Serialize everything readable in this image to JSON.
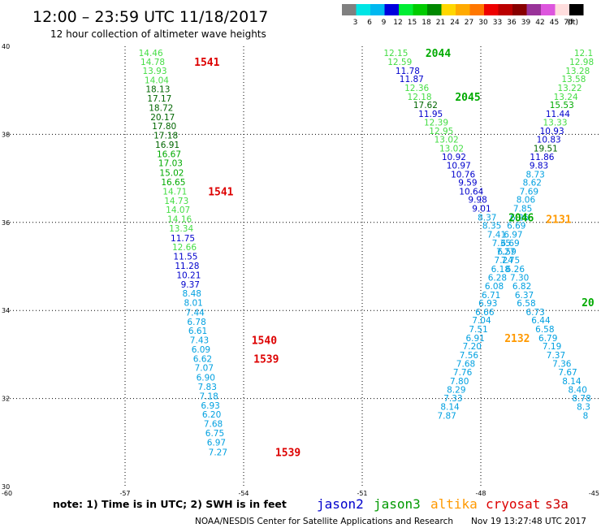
{
  "header": {
    "title": "12:00 – 23:59 UTC 11/18/2017",
    "subtitle": "12 hour collection of altimeter wave heights"
  },
  "legend": {
    "unit": "(ft)",
    "bins": [
      {
        "label": "3",
        "color": "#808080"
      },
      {
        "label": "6",
        "color": "#00e5e5"
      },
      {
        "label": "9",
        "color": "#00b8f0"
      },
      {
        "label": "12",
        "color": "#0000dd"
      },
      {
        "label": "15",
        "color": "#00ee33"
      },
      {
        "label": "18",
        "color": "#00cc00"
      },
      {
        "label": "21",
        "color": "#008800"
      },
      {
        "label": "24",
        "color": "#ffd700"
      },
      {
        "label": "27",
        "color": "#ffaa00"
      },
      {
        "label": "30",
        "color": "#ff7700"
      },
      {
        "label": "33",
        "color": "#ee0000"
      },
      {
        "label": "36",
        "color": "#bb0000"
      },
      {
        "label": "39",
        "color": "#880000"
      },
      {
        "label": "42",
        "color": "#993399"
      },
      {
        "label": "45",
        "color": "#dd55dd"
      },
      {
        "label": "70",
        "color": "#ffdddd"
      },
      {
        "label": "",
        "color": "#000000"
      }
    ]
  },
  "map": {
    "lon_range": [
      -60,
      -45
    ],
    "lat_range": [
      30,
      40
    ],
    "lon_ticks": [
      -60,
      -57,
      -54,
      -51,
      -48,
      -45
    ],
    "lon_tick_labels": [
      "-60",
      "-57",
      "-54",
      "-51",
      "-48",
      "-45"
    ],
    "lat_ticks": [
      40,
      38,
      36,
      34,
      32,
      30
    ],
    "lat_tick_labels": [
      "40",
      "38",
      "36",
      "34",
      "32",
      "30"
    ],
    "grid": "dotted"
  },
  "colors": {
    "lightgreen": "#44dd44",
    "green": "#00aa00",
    "darkgreen": "#006600",
    "blue": "#0000cc",
    "cyan": "#00a0e0",
    "red": "#dd0000",
    "orange": "#ff9900"
  },
  "observations": [
    {
      "track": "A",
      "lon": -56.35,
      "lat": 39.83,
      "swh": "14.46",
      "color": "lightgreen"
    },
    {
      "track": "A",
      "lon": -56.3,
      "lat": 39.63,
      "swh": "14.78",
      "color": "lightgreen"
    },
    {
      "track": "A",
      "lon": -56.25,
      "lat": 39.43,
      "swh": "13.93",
      "color": "lightgreen"
    },
    {
      "track": "A",
      "lon": -56.2,
      "lat": 39.22,
      "swh": "14.04",
      "color": "lightgreen"
    },
    {
      "track": "A",
      "lon": -56.17,
      "lat": 39.01,
      "swh": "18.13",
      "color": "darkgreen"
    },
    {
      "track": "A",
      "lon": -56.13,
      "lat": 38.8,
      "swh": "17.17",
      "color": "darkgreen"
    },
    {
      "track": "A",
      "lon": -56.09,
      "lat": 38.59,
      "swh": "18.72",
      "color": "darkgreen"
    },
    {
      "track": "A",
      "lon": -56.05,
      "lat": 38.38,
      "swh": "20.17",
      "color": "darkgreen"
    },
    {
      "track": "A",
      "lon": -56.01,
      "lat": 38.17,
      "swh": "17.80",
      "color": "darkgreen"
    },
    {
      "track": "A",
      "lon": -55.97,
      "lat": 37.96,
      "swh": "17.18",
      "color": "darkgreen"
    },
    {
      "track": "A",
      "lon": -55.93,
      "lat": 37.75,
      "swh": "16.91",
      "color": "darkgreen"
    },
    {
      "track": "A",
      "lon": -55.89,
      "lat": 37.54,
      "swh": "16.67",
      "color": "green"
    },
    {
      "track": "A",
      "lon": -55.85,
      "lat": 37.33,
      "swh": "17.03",
      "color": "green"
    },
    {
      "track": "A",
      "lon": -55.82,
      "lat": 37.11,
      "swh": "15.02",
      "color": "green"
    },
    {
      "track": "A",
      "lon": -55.78,
      "lat": 36.9,
      "swh": "16.65",
      "color": "green"
    },
    {
      "track": "A",
      "lon": -55.74,
      "lat": 36.69,
      "swh": "14.71",
      "color": "lightgreen"
    },
    {
      "track": "A",
      "lon": -55.7,
      "lat": 36.48,
      "swh": "14.73",
      "color": "lightgreen"
    },
    {
      "track": "A",
      "lon": -55.66,
      "lat": 36.27,
      "swh": "14.07",
      "color": "lightgreen"
    },
    {
      "track": "A",
      "lon": -55.62,
      "lat": 36.06,
      "swh": "14.16",
      "color": "lightgreen"
    },
    {
      "track": "A",
      "lon": -55.58,
      "lat": 35.85,
      "swh": "13.34",
      "color": "lightgreen"
    },
    {
      "track": "A",
      "lon": -55.54,
      "lat": 35.63,
      "swh": "11.75",
      "color": "blue"
    },
    {
      "track": "A",
      "lon": -55.5,
      "lat": 35.42,
      "swh": "12.66",
      "color": "lightgreen"
    },
    {
      "track": "A",
      "lon": -55.47,
      "lat": 35.21,
      "swh": "11.55",
      "color": "blue"
    },
    {
      "track": "A",
      "lon": -55.43,
      "lat": 35.0,
      "swh": "11.28",
      "color": "blue"
    },
    {
      "track": "A",
      "lon": -55.39,
      "lat": 34.79,
      "swh": "10.21",
      "color": "blue"
    },
    {
      "track": "A",
      "lon": -55.35,
      "lat": 34.58,
      "swh": "9.37",
      "color": "blue"
    },
    {
      "track": "A",
      "lon": -55.31,
      "lat": 34.37,
      "swh": "8.48",
      "color": "cyan"
    },
    {
      "track": "A",
      "lon": -55.27,
      "lat": 34.16,
      "swh": "8.01",
      "color": "cyan"
    },
    {
      "track": "A",
      "lon": -55.23,
      "lat": 33.94,
      "swh": "7.44",
      "color": "cyan"
    },
    {
      "track": "A",
      "lon": -55.19,
      "lat": 33.73,
      "swh": "6.78",
      "color": "cyan"
    },
    {
      "track": "A",
      "lon": -55.16,
      "lat": 33.52,
      "swh": "6.61",
      "color": "cyan"
    },
    {
      "track": "A",
      "lon": -55.12,
      "lat": 33.31,
      "swh": "7.43",
      "color": "cyan"
    },
    {
      "track": "A",
      "lon": -55.08,
      "lat": 33.1,
      "swh": "6.09",
      "color": "cyan"
    },
    {
      "track": "A",
      "lon": -55.04,
      "lat": 32.89,
      "swh": "6.62",
      "color": "cyan"
    },
    {
      "track": "A",
      "lon": -55.0,
      "lat": 32.68,
      "swh": "7.07",
      "color": "cyan"
    },
    {
      "track": "A",
      "lon": -54.96,
      "lat": 32.46,
      "swh": "6.90",
      "color": "cyan"
    },
    {
      "track": "A",
      "lon": -54.92,
      "lat": 32.25,
      "swh": "7.83",
      "color": "cyan"
    },
    {
      "track": "A",
      "lon": -54.88,
      "lat": 32.04,
      "swh": "7.18",
      "color": "cyan"
    },
    {
      "track": "A",
      "lon": -54.84,
      "lat": 31.83,
      "swh": "6.93",
      "color": "cyan"
    },
    {
      "track": "A",
      "lon": -54.81,
      "lat": 31.62,
      "swh": "6.20",
      "color": "cyan"
    },
    {
      "track": "A",
      "lon": -54.77,
      "lat": 31.41,
      "swh": "7.68",
      "color": "cyan"
    },
    {
      "track": "A",
      "lon": -54.73,
      "lat": 31.2,
      "swh": "6.75",
      "color": "cyan"
    },
    {
      "track": "A",
      "lon": -54.69,
      "lat": 30.99,
      "swh": "6.97",
      "color": "cyan"
    },
    {
      "track": "A",
      "lon": -54.65,
      "lat": 30.77,
      "swh": "7.27",
      "color": "cyan"
    },
    {
      "track": "B",
      "lon": -50.15,
      "lat": 39.83,
      "swh": "12.15",
      "color": "lightgreen"
    },
    {
      "track": "B",
      "lon": -50.05,
      "lat": 39.63,
      "swh": "12.59",
      "color": "lightgreen"
    },
    {
      "track": "B",
      "lon": -49.85,
      "lat": 39.43,
      "swh": "11.78",
      "color": "blue"
    },
    {
      "track": "B",
      "lon": -49.75,
      "lat": 39.24,
      "swh": "11.87",
      "color": "blue"
    },
    {
      "track": "B",
      "lon": -49.62,
      "lat": 39.04,
      "swh": "12.36",
      "color": "lightgreen"
    },
    {
      "track": "B",
      "lon": -49.55,
      "lat": 38.84,
      "swh": "12.18",
      "color": "lightgreen"
    },
    {
      "track": "B",
      "lon": -49.4,
      "lat": 38.65,
      "swh": "17.62",
      "color": "darkgreen"
    },
    {
      "track": "B",
      "lon": -49.27,
      "lat": 38.45,
      "swh": "11.95",
      "color": "blue"
    },
    {
      "track": "B",
      "lon": -49.13,
      "lat": 38.26,
      "swh": "12.39",
      "color": "lightgreen"
    },
    {
      "track": "B",
      "lon": -49.0,
      "lat": 38.06,
      "swh": "12.95",
      "color": "lightgreen"
    },
    {
      "track": "B",
      "lon": -48.87,
      "lat": 37.87,
      "swh": "13.02",
      "color": "lightgreen"
    },
    {
      "track": "B",
      "lon": -48.74,
      "lat": 37.67,
      "swh": "13.02",
      "color": "lightgreen"
    },
    {
      "track": "B",
      "lon": -48.68,
      "lat": 37.47,
      "swh": "10.92",
      "color": "blue"
    },
    {
      "track": "B",
      "lon": -48.56,
      "lat": 37.28,
      "swh": "10.97",
      "color": "blue"
    },
    {
      "track": "B",
      "lon": -48.45,
      "lat": 37.08,
      "swh": "10.76",
      "color": "blue"
    },
    {
      "track": "B",
      "lon": -48.33,
      "lat": 36.89,
      "swh": "9.59",
      "color": "blue"
    },
    {
      "track": "B",
      "lon": -48.24,
      "lat": 36.69,
      "swh": "10.64",
      "color": "blue"
    },
    {
      "track": "B",
      "lon": -48.08,
      "lat": 36.5,
      "swh": "9.98",
      "color": "blue"
    },
    {
      "track": "B",
      "lon": -47.98,
      "lat": 36.3,
      "swh": "9.01",
      "color": "blue"
    },
    {
      "track": "B",
      "lon": -47.84,
      "lat": 36.1,
      "swh": "8.37",
      "color": "cyan"
    },
    {
      "track": "B",
      "lon": -47.72,
      "lat": 35.91,
      "swh": "8.35",
      "color": "cyan"
    },
    {
      "track": "B",
      "lon": -47.6,
      "lat": 35.71,
      "swh": "7.41",
      "color": "cyan"
    },
    {
      "track": "B",
      "lon": -47.48,
      "lat": 35.52,
      "swh": "7.35",
      "color": "cyan"
    },
    {
      "track": "B",
      "lon": -47.37,
      "lat": 35.32,
      "swh": "7.27",
      "color": "cyan"
    },
    {
      "track": "B",
      "lon": -47.25,
      "lat": 35.13,
      "swh": "7.75",
      "color": "cyan"
    },
    {
      "track": "B",
      "lon": -47.13,
      "lat": 34.93,
      "swh": "6.26",
      "color": "cyan"
    },
    {
      "track": "B",
      "lon": -47.02,
      "lat": 34.73,
      "swh": "7.30",
      "color": "cyan"
    },
    {
      "track": "B",
      "lon": -46.96,
      "lat": 34.54,
      "swh": "6.82",
      "color": "cyan"
    },
    {
      "track": "B",
      "lon": -46.9,
      "lat": 34.34,
      "swh": "6.37",
      "color": "cyan"
    },
    {
      "track": "B",
      "lon": -46.85,
      "lat": 34.15,
      "swh": "6.58",
      "color": "cyan"
    },
    {
      "track": "B",
      "lon": -46.62,
      "lat": 33.95,
      "swh": "6.73",
      "color": "cyan"
    },
    {
      "track": "B",
      "lon": -46.48,
      "lat": 33.76,
      "swh": "6.44",
      "color": "cyan"
    },
    {
      "track": "B",
      "lon": -46.38,
      "lat": 33.56,
      "swh": "6.58",
      "color": "cyan"
    },
    {
      "track": "B",
      "lon": -46.3,
      "lat": 33.36,
      "swh": "6.79",
      "color": "cyan"
    },
    {
      "track": "B",
      "lon": -46.2,
      "lat": 33.17,
      "swh": "7.19",
      "color": "cyan"
    },
    {
      "track": "B",
      "lon": -46.1,
      "lat": 32.97,
      "swh": "7.37",
      "color": "cyan"
    },
    {
      "track": "B",
      "lon": -45.95,
      "lat": 32.78,
      "swh": "7.36",
      "color": "cyan"
    },
    {
      "track": "B",
      "lon": -45.8,
      "lat": 32.58,
      "swh": "7.67",
      "color": "cyan"
    },
    {
      "track": "B",
      "lon": -45.7,
      "lat": 32.38,
      "swh": "8.14",
      "color": "cyan"
    },
    {
      "track": "B",
      "lon": -45.55,
      "lat": 32.19,
      "swh": "8.40",
      "color": "cyan"
    },
    {
      "track": "B",
      "lon": -45.45,
      "lat": 31.99,
      "swh": "8.78",
      "color": "cyan"
    },
    {
      "track": "B",
      "lon": -45.4,
      "lat": 31.8,
      "swh": "8.3",
      "color": "cyan"
    },
    {
      "track": "B",
      "lon": -45.35,
      "lat": 31.6,
      "swh": "8",
      "color": "cyan"
    },
    {
      "track": "C",
      "lon": -45.4,
      "lat": 39.83,
      "swh": "12.1",
      "color": "lightgreen"
    },
    {
      "track": "C",
      "lon": -45.45,
      "lat": 39.63,
      "swh": "12.98",
      "color": "lightgreen"
    },
    {
      "track": "C",
      "lon": -45.55,
      "lat": 39.43,
      "swh": "13.28",
      "color": "lightgreen"
    },
    {
      "track": "C",
      "lon": -45.65,
      "lat": 39.24,
      "swh": "13.58",
      "color": "lightgreen"
    },
    {
      "track": "C",
      "lon": -45.75,
      "lat": 39.04,
      "swh": "13.22",
      "color": "lightgreen"
    },
    {
      "track": "C",
      "lon": -45.85,
      "lat": 38.84,
      "swh": "13.24",
      "color": "lightgreen"
    },
    {
      "track": "C",
      "lon": -45.95,
      "lat": 38.65,
      "swh": "15.53",
      "color": "green"
    },
    {
      "track": "C",
      "lon": -46.05,
      "lat": 38.45,
      "swh": "11.44",
      "color": "blue"
    },
    {
      "track": "C",
      "lon": -46.12,
      "lat": 38.26,
      "swh": "13.33",
      "color": "lightgreen"
    },
    {
      "track": "C",
      "lon": -46.2,
      "lat": 38.06,
      "swh": "10.93",
      "color": "blue"
    },
    {
      "track": "C",
      "lon": -46.28,
      "lat": 37.87,
      "swh": "10.83",
      "color": "blue"
    },
    {
      "track": "C",
      "lon": -46.36,
      "lat": 37.67,
      "swh": "19.51",
      "color": "darkgreen"
    },
    {
      "track": "C",
      "lon": -46.45,
      "lat": 37.47,
      "swh": "11.86",
      "color": "blue"
    },
    {
      "track": "C",
      "lon": -46.53,
      "lat": 37.28,
      "swh": "9.83",
      "color": "blue"
    },
    {
      "track": "C",
      "lon": -46.62,
      "lat": 37.08,
      "swh": "8.73",
      "color": "cyan"
    },
    {
      "track": "C",
      "lon": -46.7,
      "lat": 36.89,
      "swh": "8.62",
      "color": "cyan"
    },
    {
      "track": "C",
      "lon": -46.78,
      "lat": 36.69,
      "swh": "7.69",
      "color": "cyan"
    },
    {
      "track": "C",
      "lon": -46.86,
      "lat": 36.5,
      "swh": "8.06",
      "color": "cyan"
    },
    {
      "track": "C",
      "lon": -46.94,
      "lat": 36.3,
      "swh": "7.85",
      "color": "cyan"
    },
    {
      "track": "C",
      "lon": -47.02,
      "lat": 36.1,
      "swh": "6.26",
      "color": "cyan"
    },
    {
      "track": "C",
      "lon": -47.1,
      "lat": 35.91,
      "swh": "6.69",
      "color": "cyan"
    },
    {
      "track": "C",
      "lon": -47.18,
      "lat": 35.71,
      "swh": "6.97",
      "color": "cyan"
    },
    {
      "track": "C",
      "lon": -47.26,
      "lat": 35.52,
      "swh": "6.69",
      "color": "cyan"
    },
    {
      "track": "C",
      "lon": -47.34,
      "lat": 35.32,
      "swh": "6.59",
      "color": "cyan"
    },
    {
      "track": "C",
      "lon": -47.42,
      "lat": 35.13,
      "swh": "7.24",
      "color": "cyan"
    },
    {
      "track": "C",
      "lon": -47.5,
      "lat": 34.93,
      "swh": "6.18",
      "color": "cyan"
    },
    {
      "track": "C",
      "lon": -47.58,
      "lat": 34.73,
      "swh": "6.28",
      "color": "cyan"
    },
    {
      "track": "C",
      "lon": -47.66,
      "lat": 34.54,
      "swh": "6.08",
      "color": "cyan"
    },
    {
      "track": "C",
      "lon": -47.74,
      "lat": 34.34,
      "swh": "6.71",
      "color": "cyan"
    },
    {
      "track": "C",
      "lon": -47.82,
      "lat": 34.15,
      "swh": "6.93",
      "color": "cyan"
    },
    {
      "track": "C",
      "lon": -47.9,
      "lat": 33.95,
      "swh": "6.66",
      "color": "cyan"
    },
    {
      "track": "C",
      "lon": -47.98,
      "lat": 33.76,
      "swh": "7.04",
      "color": "cyan"
    },
    {
      "track": "C",
      "lon": -48.06,
      "lat": 33.56,
      "swh": "7.51",
      "color": "cyan"
    },
    {
      "track": "C",
      "lon": -48.14,
      "lat": 33.36,
      "swh": "6.91",
      "color": "cyan"
    },
    {
      "track": "C",
      "lon": -48.22,
      "lat": 33.17,
      "swh": "7.20",
      "color": "cyan"
    },
    {
      "track": "C",
      "lon": -48.3,
      "lat": 32.97,
      "swh": "7.56",
      "color": "cyan"
    },
    {
      "track": "C",
      "lon": -48.38,
      "lat": 32.78,
      "swh": "7.68",
      "color": "cyan"
    },
    {
      "track": "C",
      "lon": -48.46,
      "lat": 32.58,
      "swh": "7.76",
      "color": "cyan"
    },
    {
      "track": "C",
      "lon": -48.54,
      "lat": 32.38,
      "swh": "7.80",
      "color": "cyan"
    },
    {
      "track": "C",
      "lon": -48.62,
      "lat": 32.19,
      "swh": "8.29",
      "color": "cyan"
    },
    {
      "track": "C",
      "lon": -48.7,
      "lat": 31.99,
      "swh": "7.33",
      "color": "cyan"
    },
    {
      "track": "C",
      "lon": -48.78,
      "lat": 31.8,
      "swh": "8.14",
      "color": "cyan"
    },
    {
      "track": "C",
      "lon": -48.86,
      "lat": 31.6,
      "swh": "7.87",
      "color": "cyan"
    }
  ],
  "pass_labels": [
    {
      "text": "1541",
      "lon": -55.25,
      "lat": 39.63,
      "color": "red"
    },
    {
      "text": "1541",
      "lon": -54.9,
      "lat": 36.69,
      "color": "red"
    },
    {
      "text": "1540",
      "lon": -53.8,
      "lat": 33.31,
      "color": "red"
    },
    {
      "text": "1539",
      "lon": -53.75,
      "lat": 32.89,
      "color": "red"
    },
    {
      "text": "1539",
      "lon": -53.2,
      "lat": 30.77,
      "color": "red"
    },
    {
      "text": "2044",
      "lon": -49.4,
      "lat": 39.83,
      "color": "green"
    },
    {
      "text": "2045",
      "lon": -48.65,
      "lat": 38.84,
      "color": "green"
    },
    {
      "text": "2046",
      "lon": -47.3,
      "lat": 36.1,
      "color": "green"
    },
    {
      "text": "2131",
      "lon": -46.35,
      "lat": 36.06,
      "color": "orange"
    },
    {
      "text": "2132",
      "lon": -47.4,
      "lat": 33.36,
      "color": "orange"
    },
    {
      "text": "20",
      "lon": -45.45,
      "lat": 34.17,
      "color": "green"
    }
  ],
  "footer": {
    "note": "note: 1) Time is in UTC; 2) SWH is in feet",
    "satellites": [
      {
        "name": "jason2",
        "color": "#0000cc"
      },
      {
        "name": "jason3",
        "color": "#009900"
      },
      {
        "name": "altika",
        "color": "#ff9900"
      },
      {
        "name": "cryosat",
        "color": "#dd0000"
      },
      {
        "name": "s3a",
        "color": "#cc0000"
      }
    ],
    "credit": "NOAA/NESDIS Center for Satellite Applications and Research",
    "timestamp": "Nov 19 13:27:48 UTC 2017"
  }
}
